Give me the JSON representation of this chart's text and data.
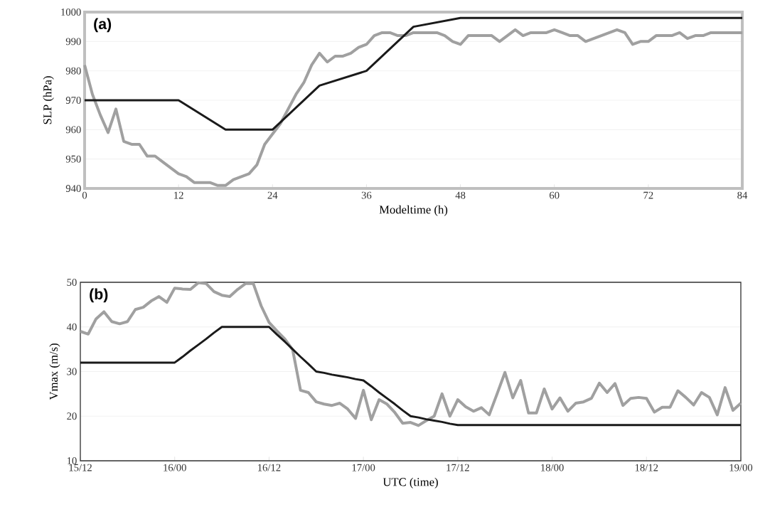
{
  "chart_data": [
    {
      "type": "line",
      "xlabel": "Modeltime (h)",
      "ylabel": "SLP (hPa)",
      "annotations": [
        "(a)"
      ],
      "xlim": [
        0,
        84
      ],
      "ylim": [
        940,
        1000
      ],
      "xticks": [
        0,
        12,
        24,
        36,
        48,
        60,
        72,
        84
      ],
      "yticks": [
        940,
        950,
        960,
        970,
        980,
        990,
        1000
      ],
      "grid": "y",
      "series": [
        {
          "color": "#a0a0a0",
          "x": [
            0,
            1,
            2,
            3,
            4,
            5,
            6,
            7,
            8,
            9,
            10,
            12,
            13,
            14,
            16,
            17,
            18,
            19,
            21,
            22,
            23,
            25,
            26,
            27,
            28,
            29,
            30,
            31,
            32,
            33,
            34,
            35,
            36,
            37,
            38,
            39,
            40,
            41,
            42,
            45,
            46,
            47,
            48,
            49,
            52,
            53,
            55,
            56,
            57,
            59,
            60,
            61,
            62,
            63,
            64,
            66,
            68,
            69,
            70,
            71,
            72,
            73,
            75,
            76,
            77,
            78,
            79,
            80,
            84
          ],
          "values": [
            982,
            972,
            965,
            959,
            967,
            956,
            955,
            955,
            951,
            951,
            949,
            945,
            944,
            942,
            942,
            941,
            941,
            943,
            945,
            948,
            955,
            962,
            967,
            972,
            976,
            982,
            986,
            983,
            985,
            985,
            986,
            988,
            989,
            992,
            993,
            993,
            992,
            992,
            993,
            993,
            992,
            990,
            989,
            992,
            992,
            990,
            994,
            992,
            993,
            993,
            994,
            993,
            992,
            992,
            990,
            992,
            994,
            993,
            989,
            990,
            990,
            992,
            992,
            993,
            991,
            992,
            992,
            993,
            993
          ]
        },
        {
          "color": "#1a1a1a",
          "x": [
            0,
            12,
            18,
            24,
            30,
            36,
            42,
            48,
            84
          ],
          "values": [
            970,
            970,
            960,
            960,
            975,
            980,
            995,
            998,
            998
          ]
        }
      ]
    },
    {
      "type": "line",
      "xlabel": "UTC (time)",
      "ylabel": "Vmax (m/s)",
      "annotations": [
        "(b)"
      ],
      "categories": [
        "15/12",
        null,
        null,
        null,
        null,
        null,
        null,
        null,
        null,
        null,
        null,
        null,
        "16/00",
        null,
        null,
        null,
        null,
        null,
        null,
        null,
        null,
        null,
        null,
        null,
        "16/12",
        null,
        null,
        null,
        null,
        null,
        null,
        null,
        null,
        null,
        null,
        null,
        "17/00",
        null,
        null,
        null,
        null,
        null,
        null,
        null,
        null,
        null,
        null,
        null,
        "17/12",
        null,
        null,
        null,
        null,
        null,
        null,
        null,
        null,
        null,
        null,
        null,
        "18/00",
        null,
        null,
        null,
        null,
        null,
        null,
        null,
        null,
        null,
        null,
        null,
        "18/12",
        null,
        null,
        null,
        null,
        null,
        null,
        null,
        null,
        null,
        null,
        null,
        "19/00"
      ],
      "ylim": [
        10,
        50
      ],
      "yticks": [
        10,
        20,
        30,
        40,
        50
      ],
      "grid": "y",
      "series": [
        {
          "color": "#a0a0a0",
          "values": [
            39,
            38.4,
            41.8,
            43.4,
            41.2,
            40.7,
            41.2,
            43.9,
            44.4,
            45.8,
            46.8,
            45.5,
            48.7,
            48.5,
            48.4,
            49.9,
            49.7,
            47.9,
            47.1,
            46.8,
            48.4,
            49.7,
            49.7,
            44.7,
            41,
            39.1,
            37.3,
            34.9,
            25.8,
            25.3,
            23.2,
            22.7,
            22.4,
            22.9,
            21.6,
            19.5,
            25.8,
            19.2,
            23.7,
            22.7,
            20.8,
            18.4,
            18.6,
            17.9,
            19,
            20,
            25,
            20,
            23.7,
            22.1,
            21.1,
            21.9,
            20.3,
            25,
            29.8,
            24.1,
            28,
            20.7,
            20.7,
            26.1,
            21.6,
            24.1,
            21.1,
            22.9,
            23.2,
            24,
            27.4,
            25.3,
            27.3,
            22.4,
            24,
            24.2,
            24,
            20.9,
            22,
            22,
            25.7,
            24.2,
            22.5,
            25.3,
            24.2,
            20.3,
            26.4,
            21.3,
            22.9
          ]
        },
        {
          "color": "#1a1a1a",
          "values": [
            32,
            32,
            32,
            32,
            32,
            32,
            32,
            32,
            32,
            32,
            32,
            32,
            32,
            33.3,
            34.7,
            36,
            37.3,
            38.7,
            40,
            40,
            40,
            40,
            40,
            40,
            40,
            38.3,
            36.7,
            35,
            33.3,
            31.7,
            30,
            29.7,
            29.3,
            29,
            28.7,
            28.3,
            28,
            26.7,
            25.3,
            24,
            22.7,
            21.3,
            20,
            19.7,
            19.3,
            19,
            18.7,
            18.3,
            18,
            18,
            18,
            18,
            18,
            18,
            18,
            18,
            18,
            18,
            18,
            18,
            18,
            18,
            18,
            18,
            18,
            18,
            18,
            18,
            18,
            18,
            18,
            18,
            18,
            18,
            18,
            18,
            18,
            18,
            18,
            18,
            18,
            18,
            18,
            18,
            18
          ]
        }
      ]
    }
  ]
}
